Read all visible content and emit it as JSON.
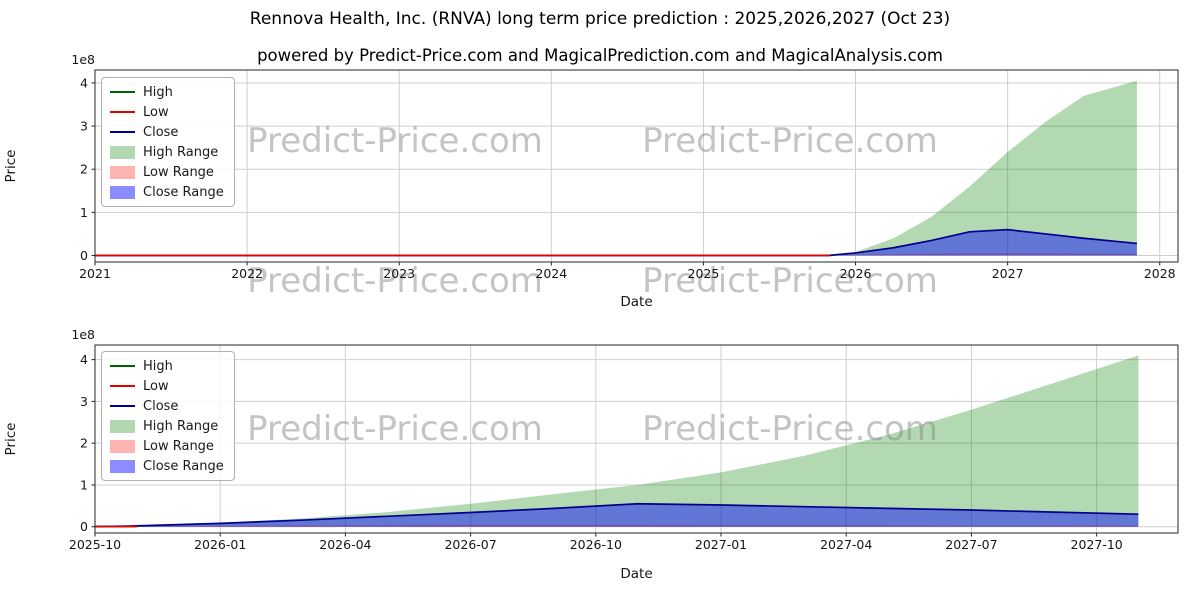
{
  "page": {
    "title": "Rennova Health, Inc. (RNVA) long term price prediction : 2025,2026,2027 (Oct 23)",
    "subtitle": "powered by Predict-Price.com and MagicalPrediction.com and MagicalAnalysis.com",
    "watermark": "Predict-Price.com"
  },
  "legend": [
    {
      "label": "High",
      "swatch": "line",
      "color": "#006400"
    },
    {
      "label": "Low",
      "swatch": "line",
      "color": "#e60000"
    },
    {
      "label": "Close",
      "swatch": "line",
      "color": "#00008b"
    },
    {
      "label": "High Range",
      "swatch": "patch",
      "color": "#b2d8b2"
    },
    {
      "label": "Low Range",
      "swatch": "patch",
      "color": "#ffb3b3"
    },
    {
      "label": "Close Range",
      "swatch": "patch",
      "color": "#8c8cff"
    }
  ],
  "chart_data": [
    {
      "type": "area",
      "name": "long-term-yearly",
      "xlabel": "Date",
      "ylabel": "Price",
      "offset_text": "1e8",
      "unit_multiplier": 100000000,
      "grid": true,
      "legend_position": "upper left",
      "xlim": [
        2021,
        2028.12
      ],
      "ylim": [
        -0.15,
        4.3
      ],
      "xticks": [
        2021,
        2022,
        2023,
        2024,
        2025,
        2026,
        2027,
        2028
      ],
      "xtick_labels": [
        "2021",
        "2022",
        "2023",
        "2024",
        "2025",
        "2026",
        "2027",
        "2028"
      ],
      "yticks": [
        0,
        1,
        2,
        3,
        4
      ],
      "ytick_labels": [
        "0",
        "1",
        "2",
        "3",
        "4"
      ],
      "series": [
        {
          "name": "High Range",
          "kind": "band",
          "color": "#008000",
          "opacity": 0.3,
          "x": [
            2025.83,
            2026.0,
            2026.25,
            2026.5,
            2026.75,
            2027.0,
            2027.25,
            2027.5,
            2027.85
          ],
          "upper": [
            0.02,
            0.08,
            0.4,
            0.9,
            1.6,
            2.4,
            3.1,
            3.7,
            4.05
          ],
          "lower": [
            0,
            0,
            0,
            0,
            0,
            0,
            0,
            0,
            0
          ]
        },
        {
          "name": "Low Range",
          "kind": "band",
          "color": "#ff0000",
          "opacity": 0.3,
          "x": [
            2025.83,
            2026.0,
            2026.25,
            2026.5,
            2026.75,
            2027.0,
            2027.25,
            2027.5,
            2027.85
          ],
          "upper": [
            0.01,
            0.02,
            0.03,
            0.04,
            0.05,
            0.05,
            0.05,
            0.04,
            0.04
          ],
          "lower": [
            0,
            0,
            0,
            0,
            0,
            0,
            0,
            0,
            0
          ]
        },
        {
          "name": "Close Range",
          "kind": "band",
          "color": "#0000ff",
          "opacity": 0.45,
          "x": [
            2025.83,
            2026.0,
            2026.25,
            2026.5,
            2026.75,
            2027.0,
            2027.25,
            2027.5,
            2027.85
          ],
          "upper": [
            0.02,
            0.06,
            0.18,
            0.35,
            0.55,
            0.6,
            0.5,
            0.4,
            0.28
          ],
          "lower": [
            0,
            0,
            0,
            0,
            0,
            0,
            0,
            0,
            0
          ]
        },
        {
          "name": "High",
          "kind": "line",
          "color": "#006400",
          "x": [
            2021.0,
            2025.83
          ],
          "y": [
            0.004,
            0.004
          ]
        },
        {
          "name": "Close",
          "kind": "line",
          "color": "#00008b",
          "x": [
            2021.0,
            2025.83,
            2026.0,
            2026.25,
            2026.5,
            2026.75,
            2027.0,
            2027.25,
            2027.5,
            2027.85
          ],
          "y": [
            0.004,
            0.004,
            0.06,
            0.18,
            0.35,
            0.55,
            0.6,
            0.5,
            0.4,
            0.28
          ]
        },
        {
          "name": "Low",
          "kind": "line",
          "color": "#e60000",
          "x": [
            2021.0,
            2025.83
          ],
          "y": [
            0.004,
            0.004
          ]
        }
      ]
    },
    {
      "type": "area",
      "name": "prediction-monthly",
      "xlabel": "Date",
      "ylabel": "Price",
      "offset_text": "1e8",
      "unit_multiplier": 100000000,
      "grid": true,
      "legend_position": "upper left",
      "x_base": "months since 2025-10",
      "xlim": [
        0,
        25.95
      ],
      "ylim": [
        -0.15,
        4.35
      ],
      "xticks": [
        0,
        3,
        6,
        9,
        12,
        15,
        18,
        21,
        24
      ],
      "xtick_labels": [
        "2025-10",
        "2026-01",
        "2026-04",
        "2026-07",
        "2026-10",
        "2027-01",
        "2027-04",
        "2027-07",
        "2027-10"
      ],
      "yticks": [
        0,
        1,
        2,
        3,
        4
      ],
      "ytick_labels": [
        "0",
        "1",
        "2",
        "3",
        "4"
      ],
      "series": [
        {
          "name": "High Range",
          "kind": "band",
          "color": "#008000",
          "opacity": 0.3,
          "x": [
            1,
            3,
            5,
            7,
            9,
            11,
            13,
            15,
            17,
            19,
            21,
            23,
            25
          ],
          "upper": [
            0.02,
            0.09,
            0.2,
            0.35,
            0.55,
            0.78,
            1.0,
            1.3,
            1.7,
            2.2,
            2.8,
            3.45,
            4.1
          ],
          "lower": [
            0,
            0,
            0,
            0,
            0,
            0,
            0,
            0,
            0,
            0,
            0,
            0,
            0
          ]
        },
        {
          "name": "Low Range",
          "kind": "band",
          "color": "#ff0000",
          "opacity": 0.3,
          "x": [
            1,
            3,
            5,
            7,
            9,
            11,
            13,
            15,
            17,
            19,
            21,
            23,
            25
          ],
          "upper": [
            0.01,
            0.02,
            0.03,
            0.04,
            0.05,
            0.05,
            0.05,
            0.04,
            0.04,
            0.04,
            0.03,
            0.03,
            0.03
          ],
          "lower": [
            0,
            0,
            0,
            0,
            0,
            0,
            0,
            0,
            0,
            0,
            0,
            0,
            0
          ]
        },
        {
          "name": "Close Range",
          "kind": "band",
          "color": "#0000ff",
          "opacity": 0.45,
          "x": [
            1,
            3,
            5,
            7,
            9,
            11,
            13,
            15,
            17,
            19,
            21,
            23,
            25
          ],
          "upper": [
            0.02,
            0.08,
            0.16,
            0.25,
            0.34,
            0.44,
            0.55,
            0.52,
            0.48,
            0.44,
            0.4,
            0.35,
            0.3
          ],
          "lower": [
            0,
            0,
            0,
            0,
            0,
            0,
            0,
            0,
            0,
            0,
            0,
            0,
            0
          ]
        },
        {
          "name": "High",
          "kind": "line",
          "color": "#006400",
          "x": [
            0,
            1
          ],
          "y": [
            0.004,
            0.004
          ]
        },
        {
          "name": "Close",
          "kind": "line",
          "color": "#00008b",
          "x": [
            0,
            1,
            3,
            5,
            7,
            9,
            11,
            13,
            15,
            17,
            19,
            21,
            23,
            25
          ],
          "y": [
            0.004,
            0.02,
            0.08,
            0.16,
            0.25,
            0.34,
            0.44,
            0.55,
            0.52,
            0.48,
            0.44,
            0.4,
            0.35,
            0.3
          ]
        },
        {
          "name": "Low",
          "kind": "line",
          "color": "#e60000",
          "x": [
            0,
            1
          ],
          "y": [
            0.004,
            0.004
          ]
        }
      ]
    }
  ]
}
